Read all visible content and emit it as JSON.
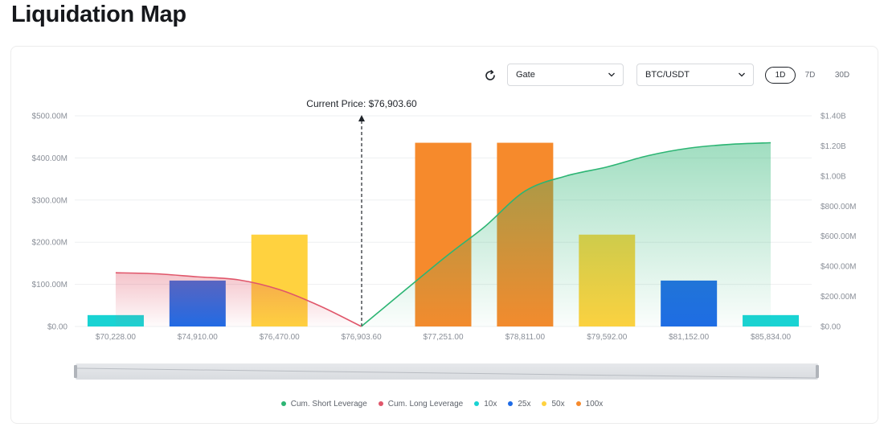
{
  "page": {
    "title": "Liquidation Map"
  },
  "toolbar": {
    "exchange": "Gate",
    "pair": "BTC/USDT",
    "ranges": [
      "1D",
      "7D",
      "30D"
    ],
    "active_range": "1D"
  },
  "icons": {
    "refresh": "refresh-icon",
    "dropdown": "chevron-down-icon"
  },
  "colors": {
    "10x": "#19d3d3",
    "25x": "#1e6be6",
    "50x": "#ffd23f",
    "100x": "#f68a2c",
    "short_line": "#2db574",
    "long_line": "#e0566a"
  },
  "chart_data": {
    "type": "bar",
    "current_price_label": "Current Price: $76,903.60",
    "categories": [
      "$70,228.00",
      "$74,910.00",
      "$76,470.00",
      "$76,903.60",
      "$77,251.00",
      "$78,811.00",
      "$79,592.00",
      "$81,152.00",
      "$85,834.00"
    ],
    "y_left": {
      "ticks": [
        "$0.00",
        "$100.00M",
        "$200.00M",
        "$300.00M",
        "$400.00M",
        "$500.00M"
      ],
      "range": [
        0,
        500
      ]
    },
    "y_right": {
      "ticks": [
        "$0.00",
        "$200.00M",
        "$400.00M",
        "$600.00M",
        "$800.00M",
        "$1.00B",
        "$1.20B",
        "$1.40B"
      ],
      "range": [
        0,
        1400
      ]
    },
    "bars": [
      {
        "category": "$70,228.00",
        "leverage": "10x",
        "value": 27
      },
      {
        "category": "$74,910.00",
        "leverage": "25x",
        "value": 109
      },
      {
        "category": "$76,470.00",
        "leverage": "50x",
        "value": 218
      },
      {
        "category": "$77,251.00",
        "leverage": "100x",
        "value": 436
      },
      {
        "category": "$78,811.00",
        "leverage": "100x",
        "value": 436
      },
      {
        "category": "$79,592.00",
        "leverage": "50x",
        "value": 218
      },
      {
        "category": "$81,152.00",
        "leverage": "25x",
        "value": 109
      },
      {
        "category": "$85,834.00",
        "leverage": "10x",
        "value": 27
      }
    ],
    "series": [
      {
        "name": "Cum. Short Leverage",
        "points": [
          [
            3,
            0
          ],
          [
            4,
            450
          ],
          [
            4.5,
            660
          ],
          [
            5,
            900
          ],
          [
            5.5,
            1000
          ],
          [
            6,
            1060
          ],
          [
            6.5,
            1135
          ],
          [
            7,
            1185
          ],
          [
            7.5,
            1210
          ],
          [
            8,
            1221
          ]
        ]
      },
      {
        "name": "Cum. Long Leverage",
        "points": [
          [
            0,
            357
          ],
          [
            0.5,
            350
          ],
          [
            1,
            330
          ],
          [
            1.5,
            310
          ],
          [
            2,
            245
          ],
          [
            2.5,
            135
          ],
          [
            3,
            0
          ]
        ]
      }
    ],
    "legend": [
      "Cum. Short Leverage",
      "Cum. Long Leverage",
      "10x",
      "25x",
      "50x",
      "100x"
    ],
    "legend_position": "bottom",
    "grid": true
  }
}
